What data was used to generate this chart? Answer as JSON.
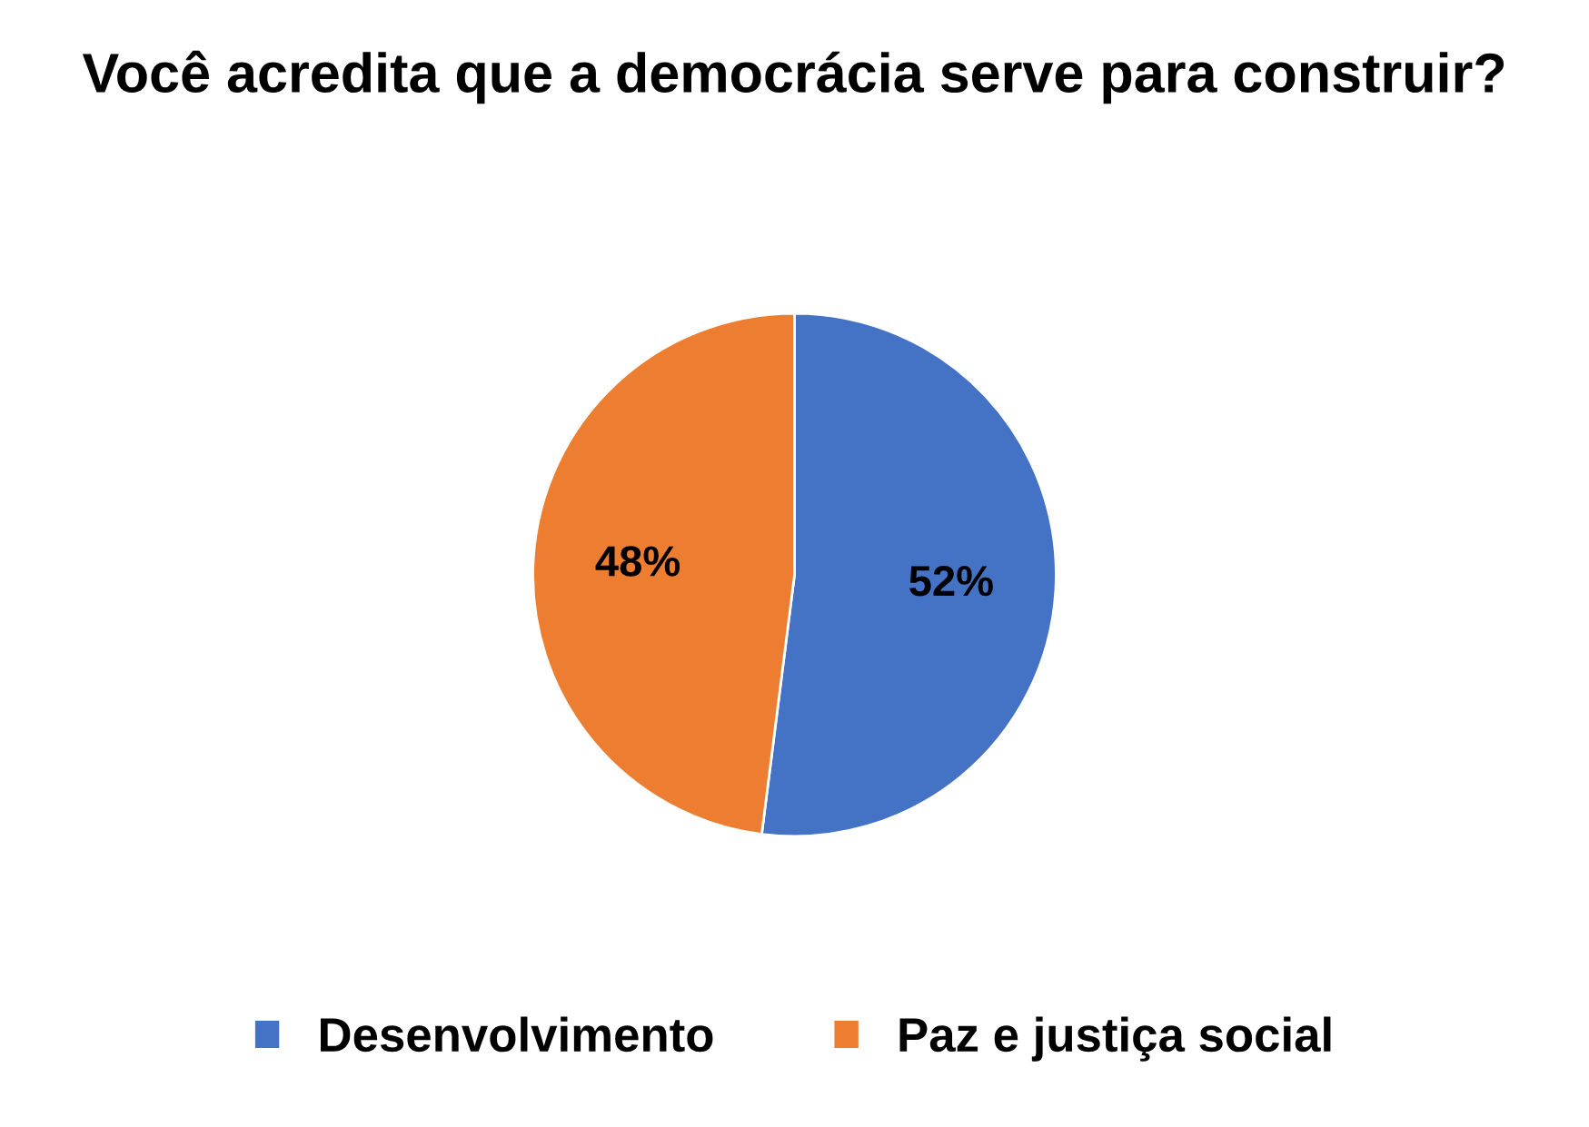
{
  "chart_data": {
    "type": "pie",
    "title": "Você acredita que a democrácia serve para construir?",
    "categories": [
      "Desenvolvimento",
      "Paz e justiça social"
    ],
    "values": [
      52,
      48
    ],
    "colors": [
      "#4472c4",
      "#ed7d31"
    ],
    "value_labels": [
      "52%",
      "48%"
    ],
    "legend": "bottom"
  }
}
